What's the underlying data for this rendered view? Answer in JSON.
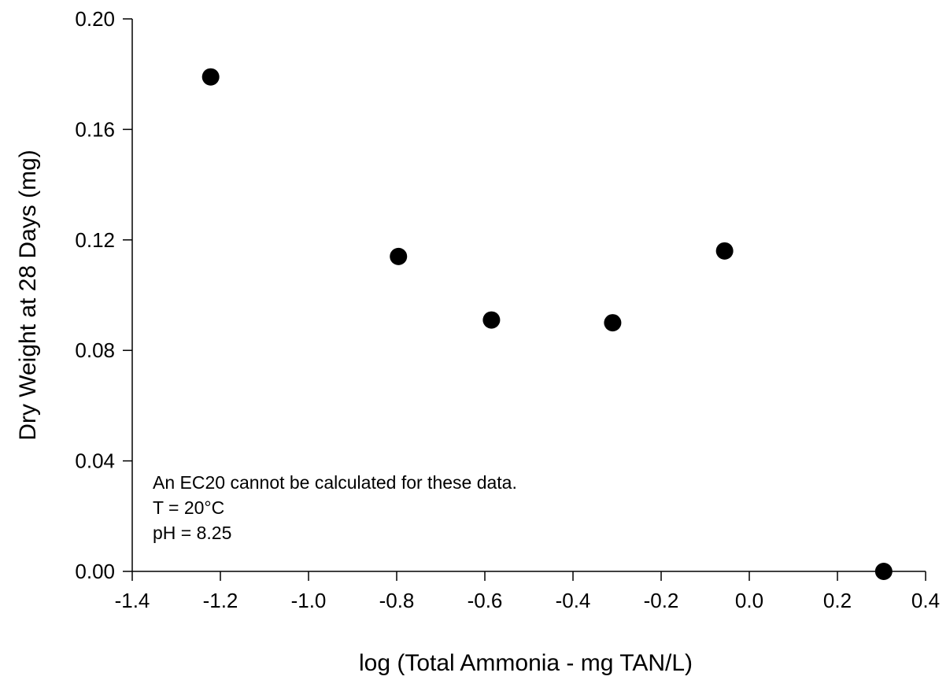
{
  "chart_data": {
    "type": "scatter",
    "title": "",
    "xlabel": "log (Total Ammonia - mg TAN/L)",
    "ylabel": "Dry Weight at 28 Days (mg)",
    "xlim": [
      -1.4,
      0.4
    ],
    "ylim": [
      0.0,
      0.2
    ],
    "x_ticks": [
      "-1.4",
      "-1.2",
      "-1.0",
      "-0.8",
      "-0.6",
      "-0.4",
      "-0.2",
      "0.0",
      "0.2",
      "0.4"
    ],
    "y_ticks": [
      "0.00",
      "0.04",
      "0.08",
      "0.12",
      "0.16",
      "0.20"
    ],
    "grid": false,
    "marker_color": "#000000",
    "points": [
      {
        "x": -1.222,
        "y": 0.179
      },
      {
        "x": -0.796,
        "y": 0.114
      },
      {
        "x": -0.585,
        "y": 0.091
      },
      {
        "x": -0.31,
        "y": 0.09
      },
      {
        "x": -0.056,
        "y": 0.116
      },
      {
        "x": 0.305,
        "y": 0.0
      }
    ],
    "annotations": [
      "An EC20 cannot be calculated for these data.",
      "T = 20°C",
      "pH = 8.25"
    ]
  }
}
